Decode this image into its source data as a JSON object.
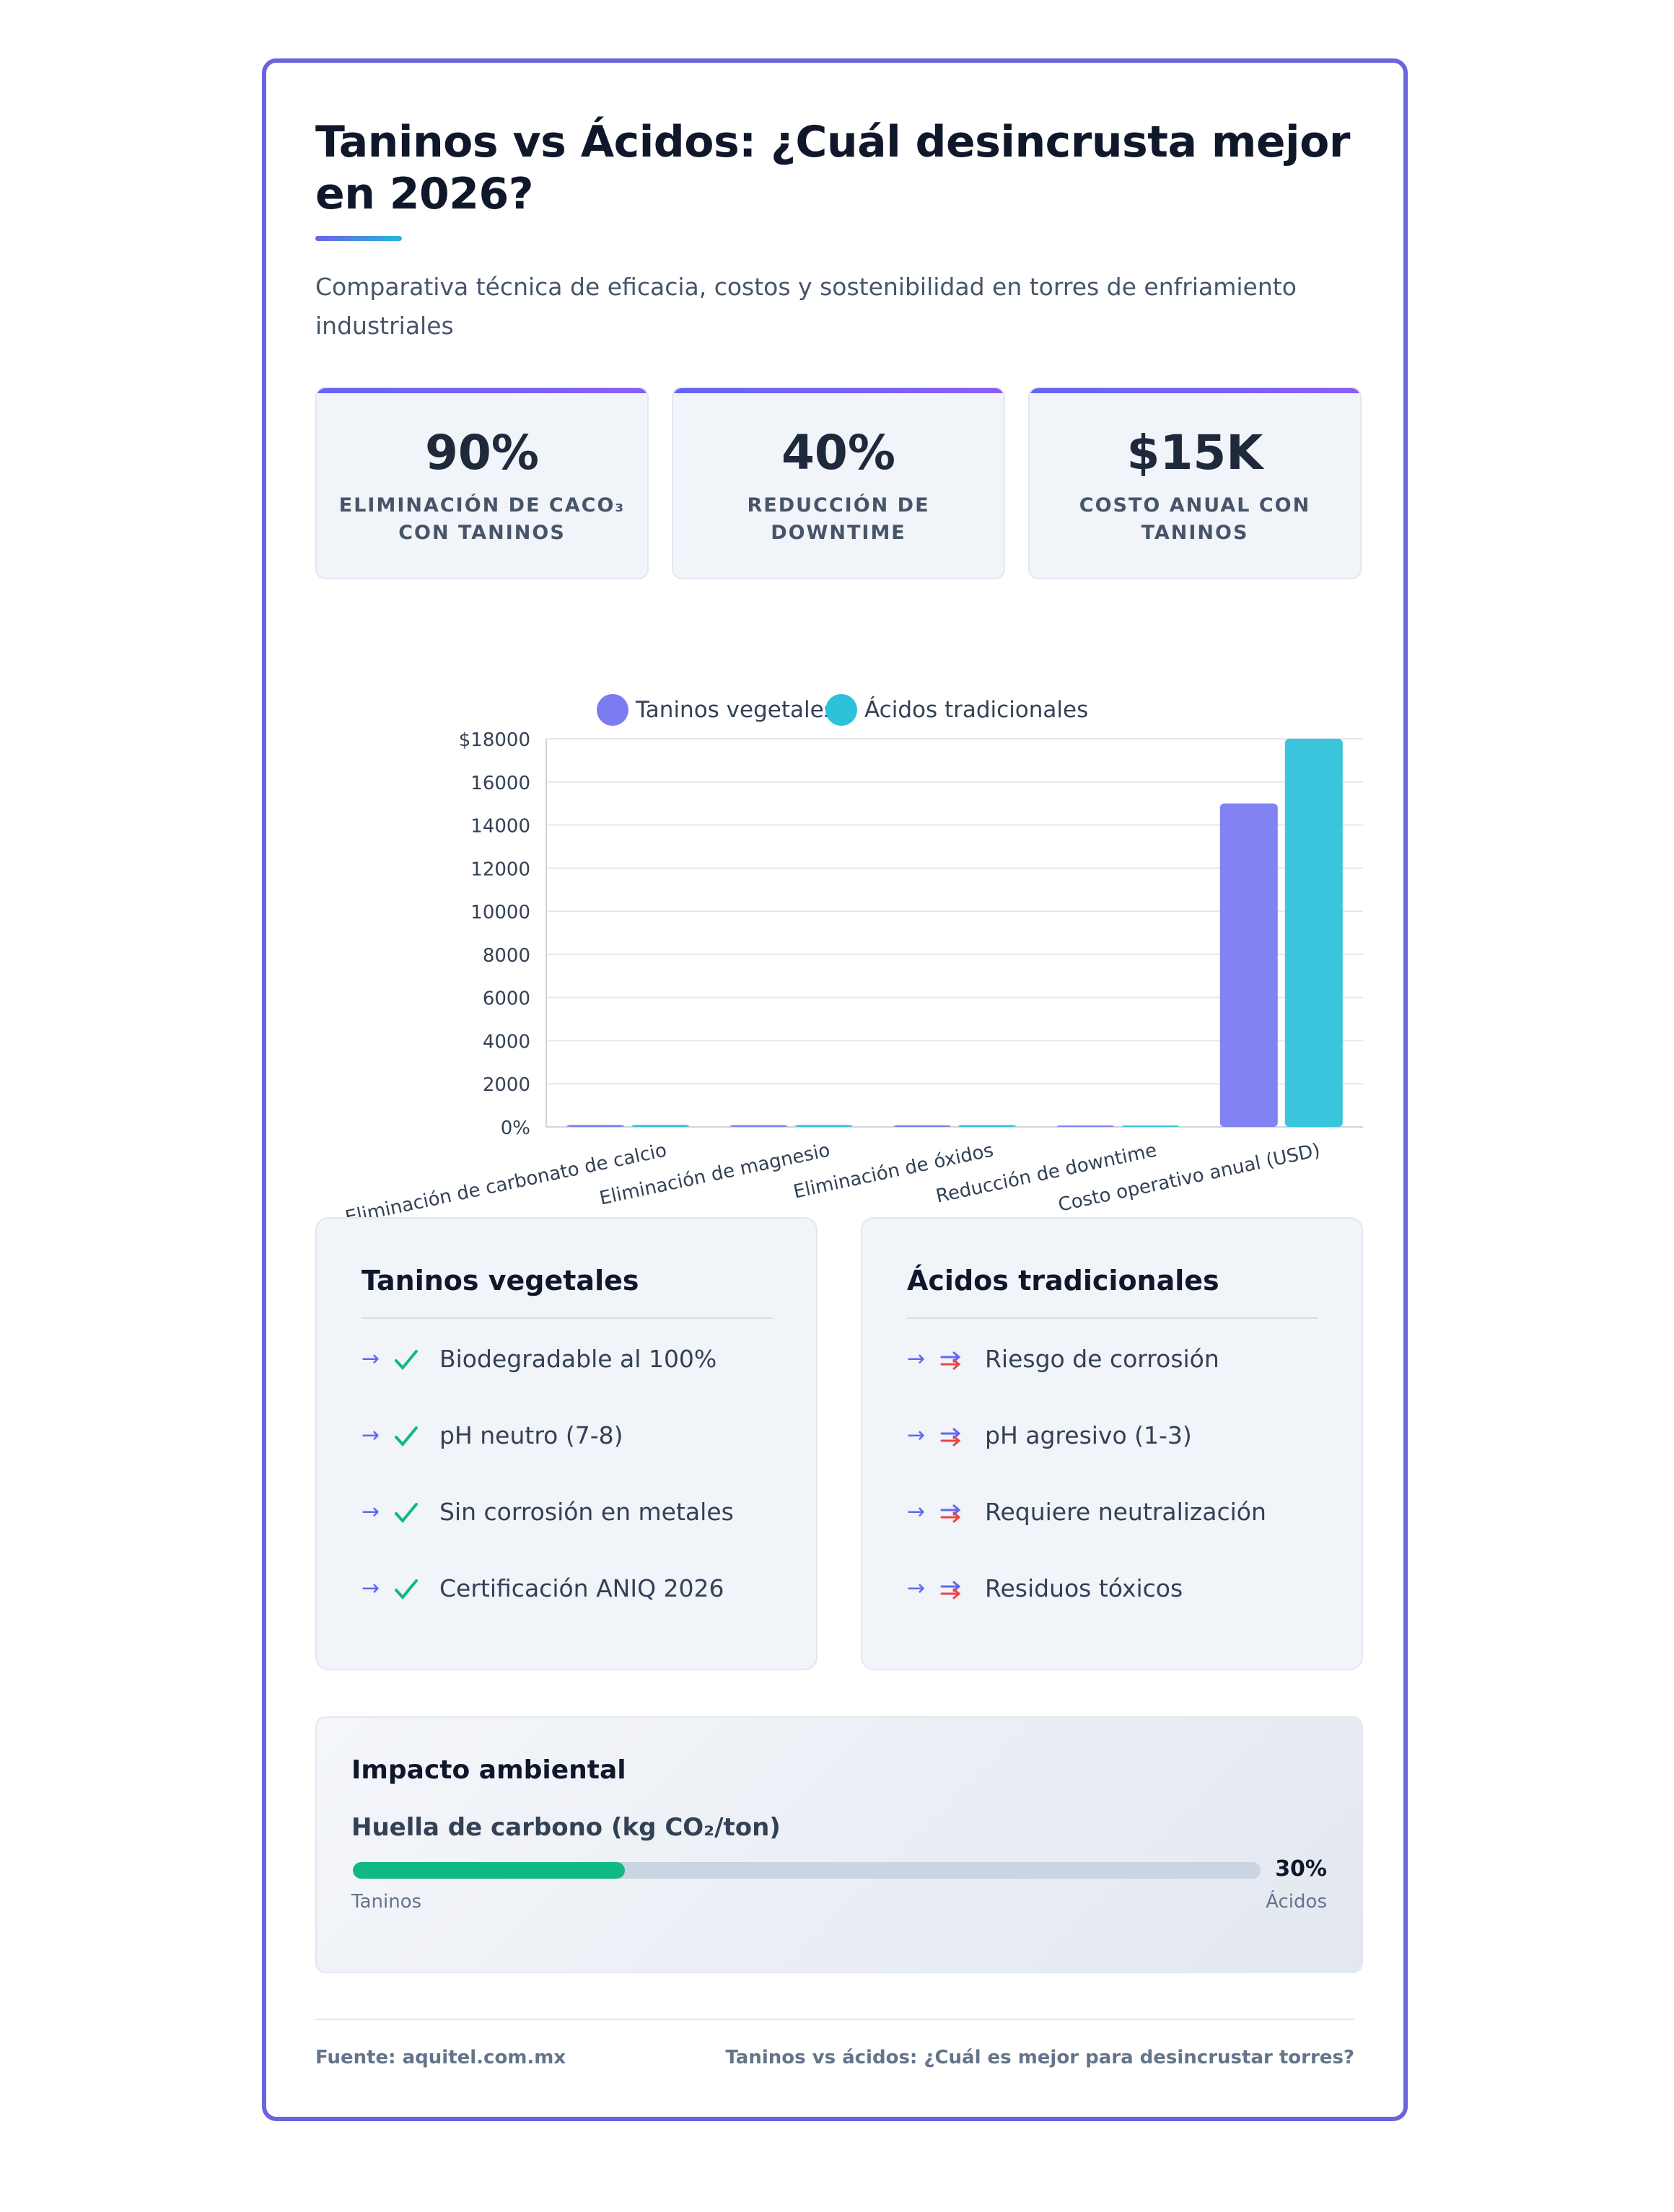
{
  "header": {
    "title": "Taninos vs Ácidos: ¿Cuál desincrusta mejor en 2026?",
    "subtitle": "Comparativa técnica de eficacia, costos y sostenibilidad en torres de enfriamiento industriales"
  },
  "kpis": [
    {
      "value": "90%",
      "label": "Eliminación de CaCO₃ con taninos"
    },
    {
      "value": "40%",
      "label": "Reducción de downtime"
    },
    {
      "value": "$15K",
      "label": "Costo anual con taninos"
    }
  ],
  "chart_data": {
    "type": "bar",
    "categories": [
      "Eliminación de carbonato de calcio",
      "Eliminación de magnesio",
      "Eliminación de óxidos",
      "Reducción de downtime",
      "Costo operativo anual (USD)"
    ],
    "series": [
      {
        "name": "Taninos vegetales",
        "color": "#7b7cf1",
        "values": [
          90,
          85,
          80,
          40,
          15000
        ]
      },
      {
        "name": "Ácidos tradicionales",
        "color": "#2ec2da",
        "values": [
          95,
          90,
          88,
          10,
          18000
        ]
      }
    ],
    "yticks": [
      "0%",
      "2000",
      "4000",
      "6000",
      "8000",
      "10000",
      "12000",
      "14000",
      "16000",
      "$18000"
    ],
    "ylim": [
      0,
      18000
    ],
    "grid": true,
    "legend": "top"
  },
  "panels": [
    {
      "title": "Taninos vegetales",
      "items": [
        "Biodegradable al 100%",
        "pH neutro (7-8)",
        "Sin corrosión en metales",
        "Certificación ANIQ 2026"
      ]
    },
    {
      "title": "Ácidos tradicionales",
      "items": [
        "Riesgo de corrosión",
        "pH agresivo (1-3)",
        "Requiere neutralización",
        "Residuos tóxicos"
      ]
    }
  ],
  "impact": {
    "title": "Impacto ambiental",
    "metric": "Huella de carbono (kg CO₂/ton)",
    "percent_label": "30%",
    "fill_fraction": 0.3,
    "left_label": "Taninos",
    "right_label": "Ácidos"
  },
  "footer": {
    "source": "Fuente: aquitel.com.mx",
    "article": "Taninos vs ácidos: ¿Cuál es mejor para desincrustar torres?"
  }
}
